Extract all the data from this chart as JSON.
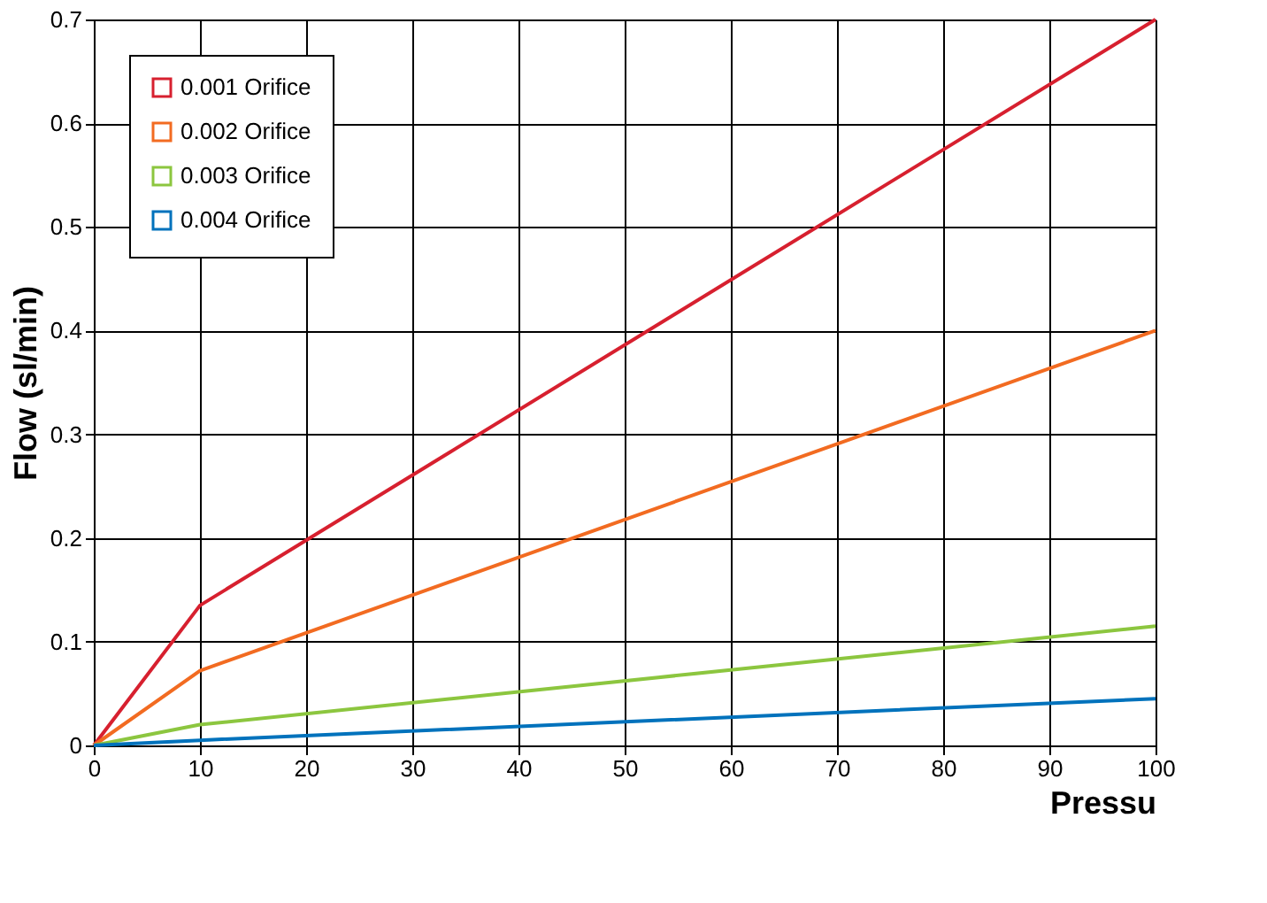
{
  "chart_data": {
    "type": "line",
    "xlabel": "Pressu",
    "ylabel": "Flow (sl/min)",
    "x": [
      0,
      10,
      100
    ],
    "series": [
      {
        "name": "0.001 Orifice",
        "color": "#d7202f",
        "values": [
          0,
          0.135,
          0.7
        ]
      },
      {
        "name": "0.002 Orifice",
        "color": "#f26b21",
        "values": [
          0,
          0.072,
          0.4
        ]
      },
      {
        "name": "0.003 Orifice",
        "color": "#8cc63f",
        "values": [
          0,
          0.02,
          0.115
        ]
      },
      {
        "name": "0.004 Orifice",
        "color": "#0072bc",
        "values": [
          0,
          0.005,
          0.045
        ]
      }
    ],
    "xlim": [
      0,
      100
    ],
    "xticks": [
      0,
      10,
      20,
      30,
      40,
      50,
      60,
      70,
      80,
      90,
      100
    ],
    "ylim": [
      0,
      0.7
    ],
    "yticks": [
      0,
      0.1,
      0.2,
      0.3,
      0.4,
      0.5,
      0.6,
      0.7
    ],
    "grid": true,
    "legend": "top left",
    "marker": "none",
    "line_style": "solid"
  }
}
